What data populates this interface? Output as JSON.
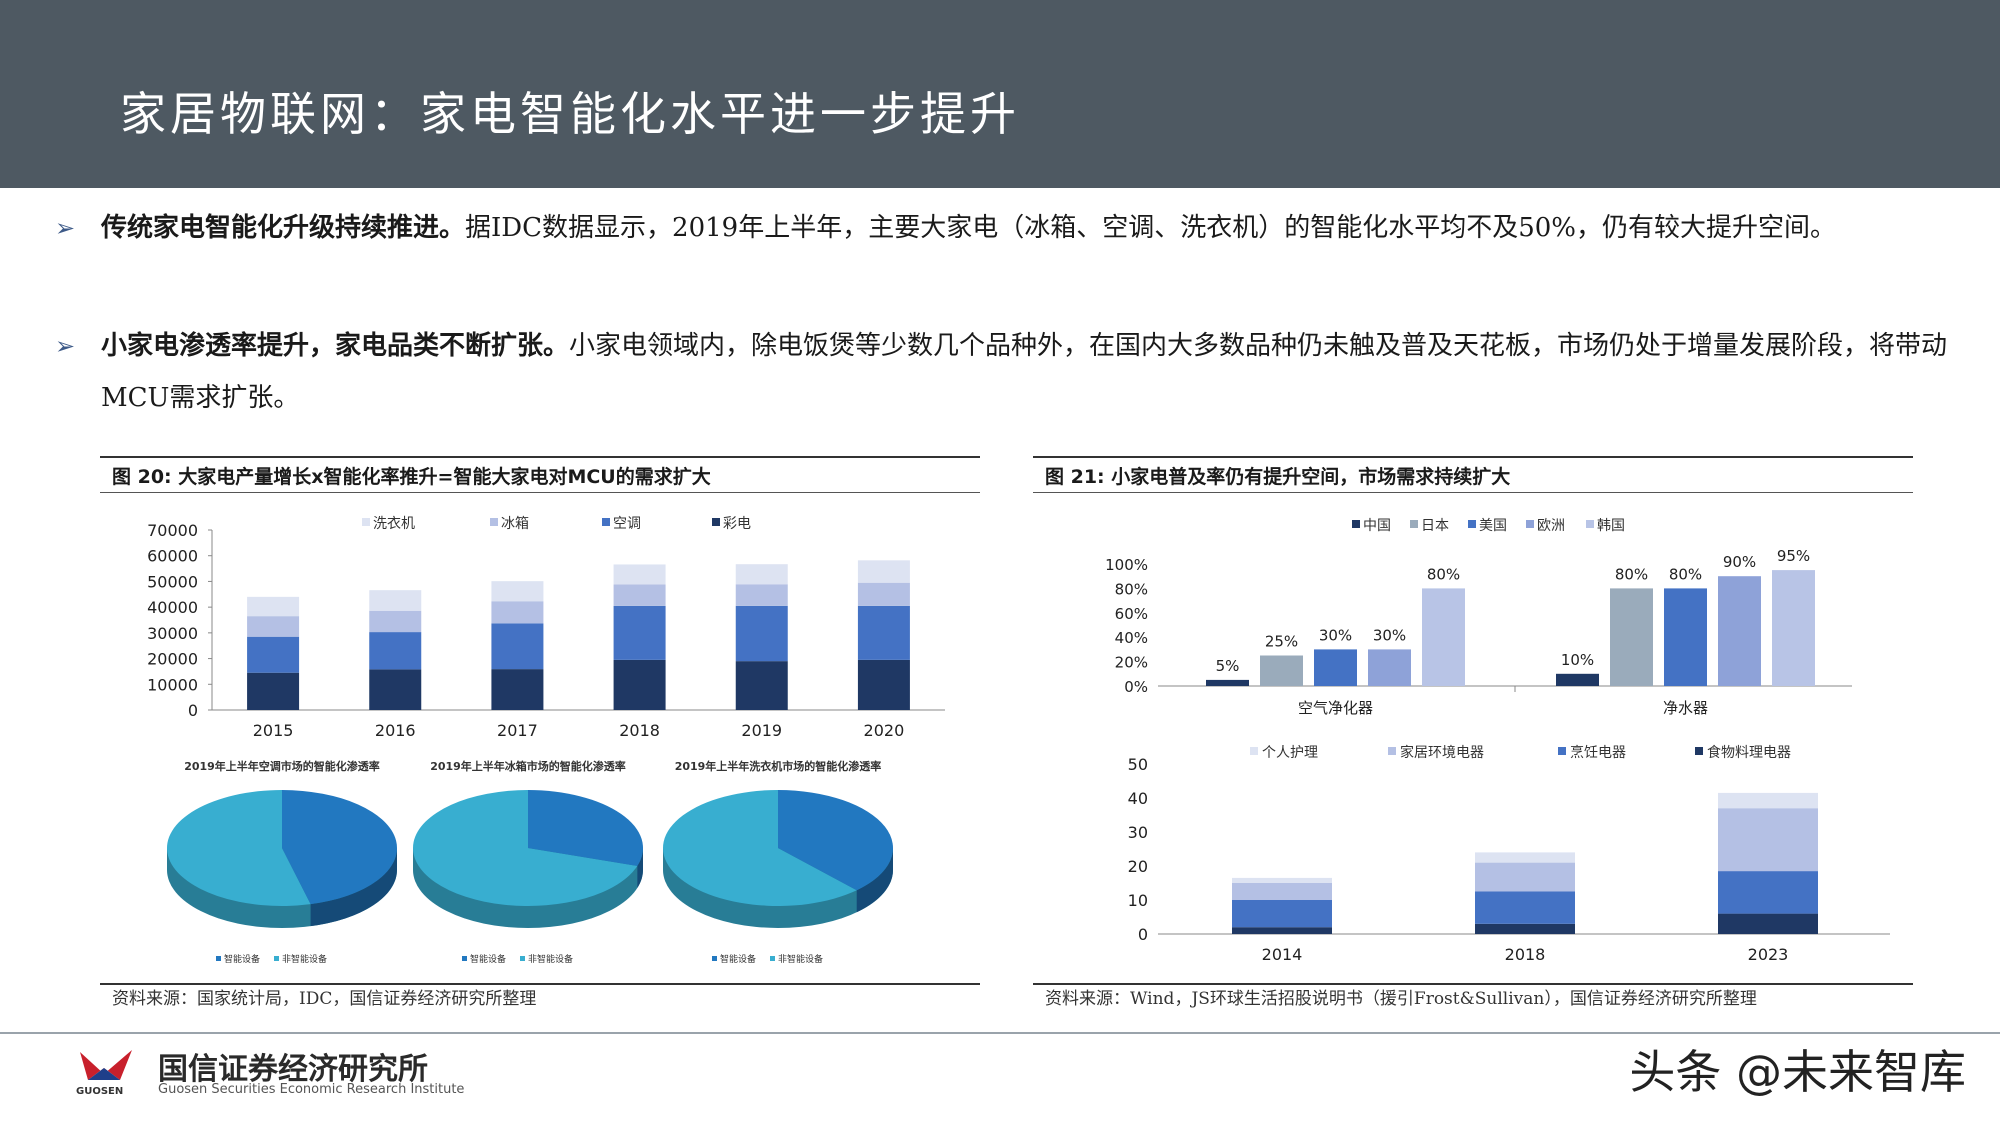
{
  "header": {
    "title": "家居物联网：家电智能化水平进一步提升"
  },
  "bullets": [
    {
      "bold": "传统家电智能化升级持续推进。",
      "rest": "据IDC数据显示，2019年上半年，主要大家电（冰箱、空调、洗衣机）的智能化水平均不及50%，仍有较大提升空间。"
    },
    {
      "bold": "小家电渗透率提升，家电品类不断扩张。",
      "rest": "小家电领域内，除电饭煲等少数几个品种外，在国内大多数品种仍未触及普及天花板，市场仍处于增量发展阶段，将带动MCU需求扩张。"
    }
  ],
  "fig20": {
    "caption": "图 20:  大家电产量增长x智能化率推升=智能大家电对MCU的需求扩大",
    "source": "资料来源：国家统计局，IDC，国信证券经济研究所整理"
  },
  "fig21": {
    "caption": "图 21:  小家电普及率仍有提升空间，市场需求持续扩大",
    "source": "资料来源：Wind，JS环球生活招股说明书（援引Frost&Sullivan），国信证券经济研究所整理"
  },
  "colors": {
    "navy": "#1f3864",
    "blue": "#4472c4",
    "lightblue": "#b4c0e4",
    "paleblue": "#dde3f2",
    "gray": "#9aabbb",
    "periwinkle": "#8ea2d8",
    "lavender": "#b8c4e6",
    "pie_light": "#38aed0",
    "pie_dark": "#2278c0"
  },
  "chart_data": [
    {
      "type": "bar",
      "stacked": true,
      "categories": [
        "2015",
        "2016",
        "2017",
        "2018",
        "2019",
        "2020"
      ],
      "series": [
        {
          "name": "彩电",
          "values": [
            14500,
            15800,
            15900,
            19500,
            19000,
            19500
          ]
        },
        {
          "name": "空调",
          "values": [
            14000,
            14500,
            17800,
            21000,
            21500,
            21000
          ]
        },
        {
          "name": "冰箱",
          "values": [
            8000,
            8300,
            8600,
            8300,
            8400,
            9000
          ]
        },
        {
          "name": "洗衣机",
          "values": [
            7500,
            8000,
            7800,
            7800,
            7800,
            8700
          ]
        }
      ],
      "legend_order": [
        "洗衣机",
        "冰箱",
        "空调",
        "彩电"
      ],
      "ylim": [
        0,
        70000
      ],
      "yticks": [
        "70000",
        "60000",
        "50000",
        "40000",
        "30000",
        "20000",
        "10000",
        "0"
      ]
    },
    {
      "type": "pie",
      "title": "2019年上半年空调市场的智能化渗透率",
      "labels": [
        "智能设备",
        "非智能设备"
      ],
      "values": [
        46,
        54
      ]
    },
    {
      "type": "pie",
      "title": "2019年上半年冰箱市场的智能化渗透率",
      "labels": [
        "智能设备",
        "非智能设备"
      ],
      "values": [
        30,
        70
      ]
    },
    {
      "type": "pie",
      "title": "2019年上半年洗衣机市场的智能化渗透率",
      "labels": [
        "智能设备",
        "非智能设备"
      ],
      "values": [
        38,
        62
      ]
    },
    {
      "type": "bar",
      "categories": [
        "空气净化器",
        "净水器"
      ],
      "series": [
        {
          "name": "中国",
          "values": [
            5,
            10
          ],
          "labels": [
            "5%",
            "10%"
          ]
        },
        {
          "name": "日本",
          "values": [
            25,
            80
          ],
          "labels": [
            "25%",
            "80%"
          ]
        },
        {
          "name": "美国",
          "values": [
            30,
            80
          ],
          "labels": [
            "30%",
            "80%"
          ]
        },
        {
          "name": "欧洲",
          "values": [
            30,
            90
          ],
          "labels": [
            "30%",
            "90%"
          ]
        },
        {
          "name": "韩国",
          "values": [
            80,
            95
          ],
          "labels": [
            "80%",
            "95%"
          ]
        }
      ],
      "ylim": [
        0,
        100
      ],
      "yticks": [
        "100%",
        "80%",
        "60%",
        "40%",
        "20%",
        "0%"
      ]
    },
    {
      "type": "bar",
      "stacked": true,
      "categories": [
        "2014",
        "2018",
        "2023"
      ],
      "series": [
        {
          "name": "食物料理电器",
          "values": [
            2,
            3,
            6
          ]
        },
        {
          "name": "烹饪电器",
          "values": [
            8,
            9.5,
            12.5
          ]
        },
        {
          "name": "家居环境电器",
          "values": [
            5,
            8.5,
            18.5
          ]
        },
        {
          "name": "个人护理",
          "values": [
            1.5,
            3,
            4.5
          ]
        }
      ],
      "legend_order": [
        "个人护理",
        "家居环境电器",
        "烹饪电器",
        "食物料理电器"
      ],
      "ylim": [
        0,
        50
      ],
      "yticks": [
        "50",
        "40",
        "30",
        "20",
        "10",
        "0"
      ]
    }
  ],
  "footer": {
    "company_cn": "国信证券经济研究所",
    "company_en": "Guosen Securities Economic Research Institute",
    "logo_small": "GUOSEN",
    "watermark": "头条 @未来智库"
  }
}
